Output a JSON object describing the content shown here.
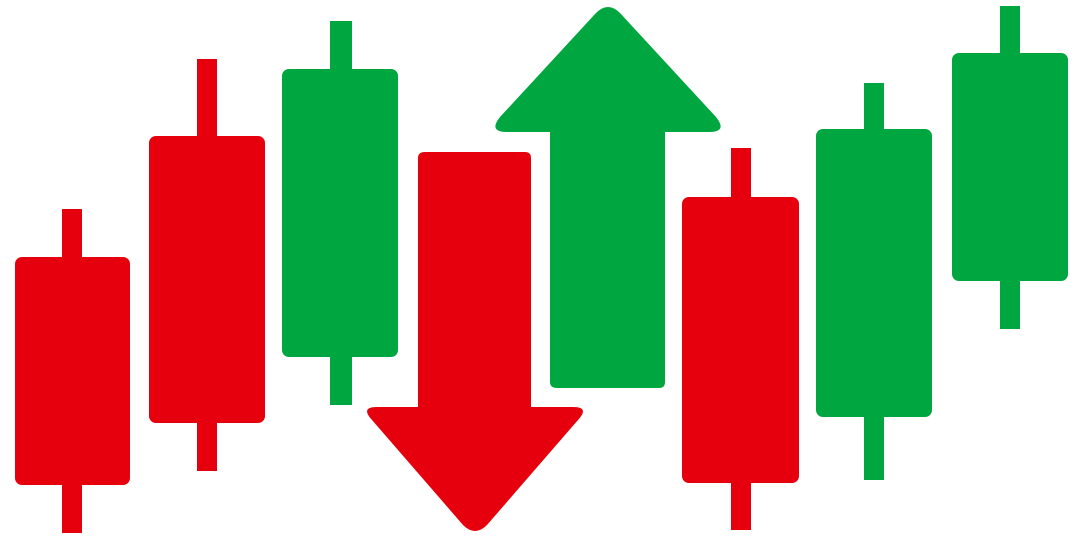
{
  "illustration": {
    "subject": "candlestick-trend-graphic",
    "colors": {
      "up": "#00a63f",
      "down": "#e6000d",
      "background": "#ffffff"
    },
    "candles": [
      {
        "direction": "down"
      },
      {
        "direction": "down"
      },
      {
        "direction": "up"
      },
      {
        "direction": "down"
      },
      {
        "direction": "up"
      },
      {
        "direction": "up"
      }
    ],
    "arrows": [
      {
        "direction": "down",
        "icon": "arrow-down-icon"
      },
      {
        "direction": "up",
        "icon": "arrow-up-icon"
      }
    ]
  }
}
